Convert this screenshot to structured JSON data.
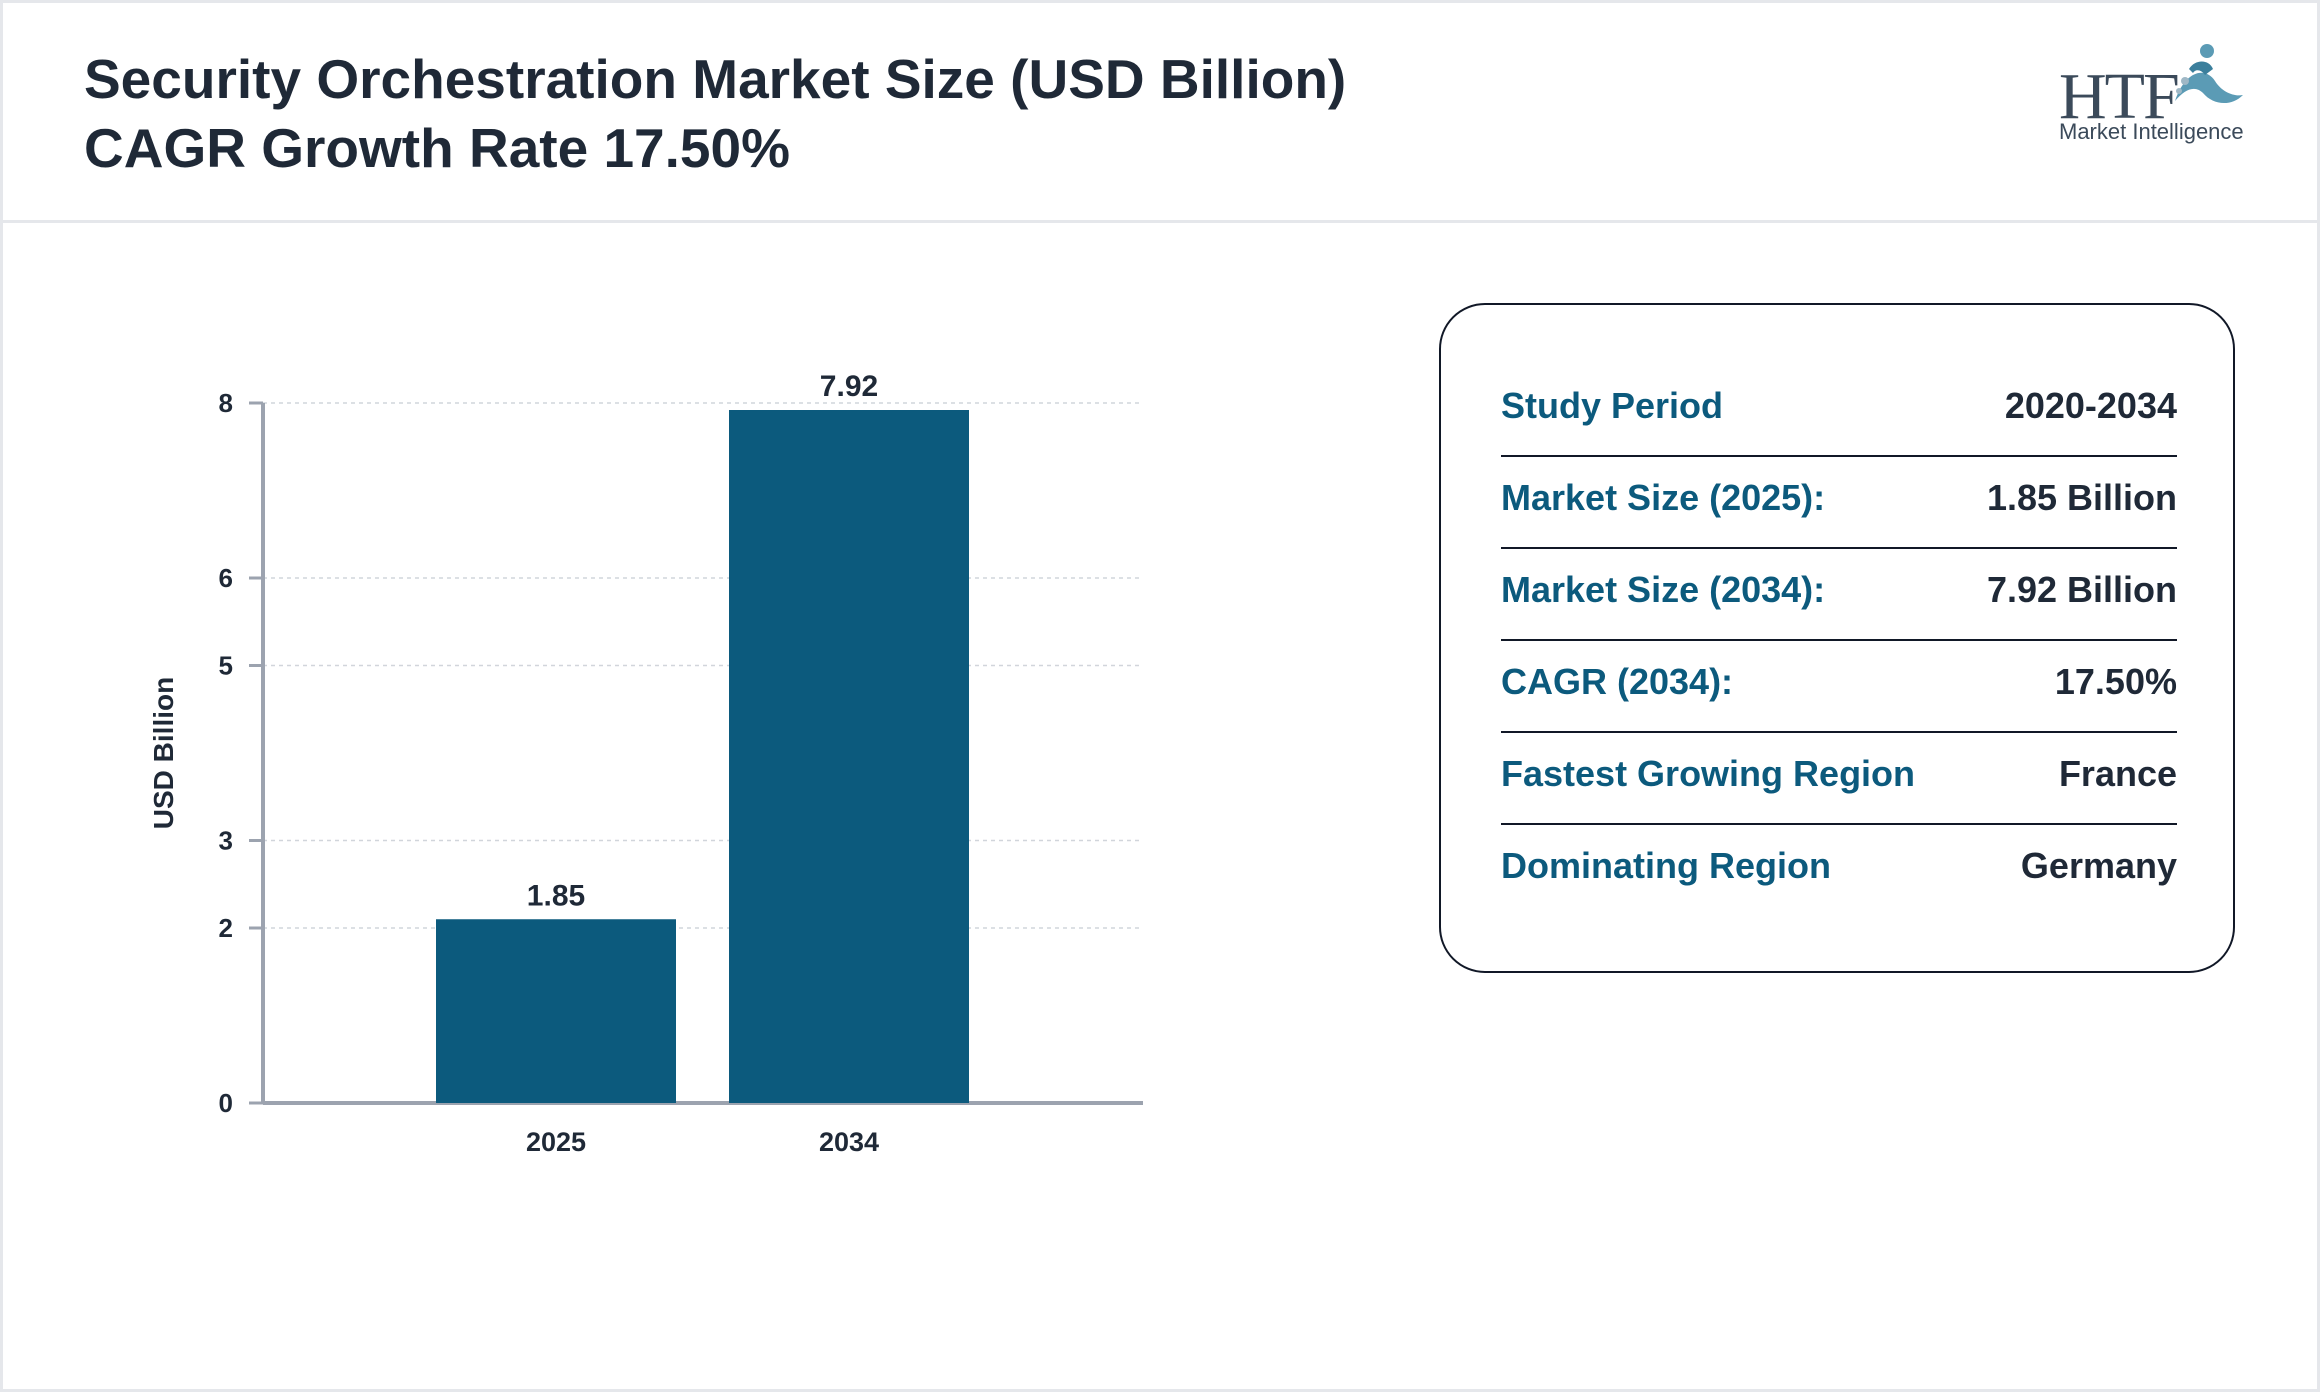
{
  "header": {
    "title_line1": "Security Orchestration Market Size (USD Billion)",
    "title_line2": "CAGR Growth Rate 17.50%"
  },
  "logo": {
    "brand": "HTF",
    "tagline": "Market Intelligence",
    "icon": "htf-figure-logo-icon"
  },
  "chart_data": {
    "type": "bar",
    "categories": [
      "2025",
      "2034"
    ],
    "values": [
      1.85,
      7.92
    ],
    "data_labels": [
      "1.85",
      "7.92"
    ],
    "ylabel": "USD Billion",
    "yticks": [
      0,
      2,
      3,
      5,
      6,
      8
    ],
    "ylim": [
      0,
      8
    ],
    "grid": true,
    "bar_color": "#0c5a7d"
  },
  "info": {
    "rows": [
      {
        "label": "Study Period",
        "value": "2020-2034"
      },
      {
        "label": "Market Size (2025):",
        "value": "1.85 Billion"
      },
      {
        "label": "Market Size (2034):",
        "value": "7.92 Billion"
      },
      {
        "label": "CAGR (2034):",
        "value": "17.50%"
      },
      {
        "label": "Fastest Growing Region",
        "value": "France"
      },
      {
        "label": "Dominating Region",
        "value": "Germany"
      }
    ]
  },
  "colors": {
    "accent": "#0c5a7d",
    "title": "#1f2937",
    "axis": "#9ca3af"
  }
}
